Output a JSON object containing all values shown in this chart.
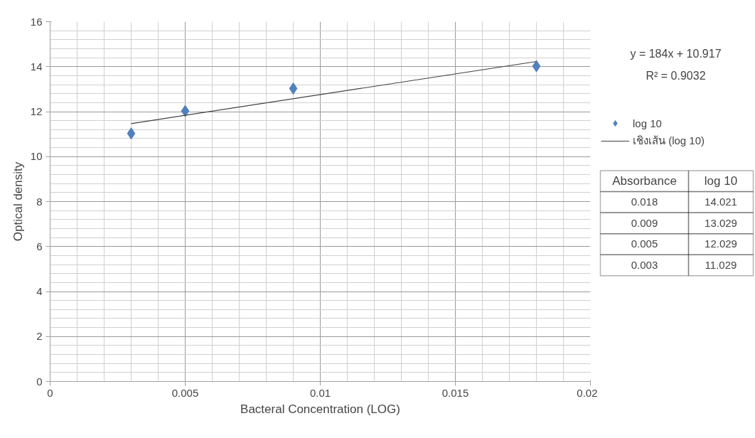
{
  "chart_data": {
    "type": "scatter",
    "xlabel": "Bacteral Concentration (LOG)",
    "ylabel": "Optical density",
    "xlim": [
      0,
      0.02
    ],
    "xticks": [
      0,
      0.005,
      0.01,
      0.015,
      0.02
    ],
    "ylim": [
      0,
      16
    ],
    "yticks": [
      0,
      2,
      4,
      6,
      8,
      10,
      12,
      14,
      16
    ],
    "grid": true,
    "legend": "right",
    "x": [
      0.003,
      0.005,
      0.009,
      0.018
    ],
    "series": [
      {
        "name": "log 10",
        "color": "#4f81bd",
        "marker": "diamond",
        "values": [
          11.029,
          12.029,
          13.029,
          14.021
        ]
      },
      {
        "name": "เชิงเส้น (log 10)",
        "type": "line",
        "color": "#404040",
        "x": [
          0.003,
          0.018
        ],
        "values": [
          11.469,
          14.229
        ]
      }
    ],
    "annotations": [
      "y = 184x + 10.917",
      "R² = 0.9032",
      "Absorbance",
      "log 10",
      "0.018",
      "14.021",
      "0.009",
      "13.029",
      "0.005",
      "12.029",
      "0.003",
      "11.029"
    ]
  }
}
